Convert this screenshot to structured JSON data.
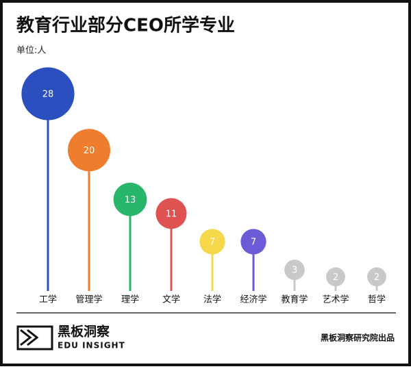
{
  "chart_data": {
    "type": "lollipop",
    "title": "教育行业部分CEO所学专业",
    "subtitle": "单位:人",
    "categories": [
      "工学",
      "管理学",
      "理学",
      "文学",
      "法学",
      "经济学",
      "教育学",
      "艺术学",
      "哲学"
    ],
    "values": [
      28,
      20,
      13,
      11,
      7,
      7,
      3,
      2,
      2
    ],
    "colors": [
      "#2c4fbf",
      "#ee7d2e",
      "#28b76a",
      "#df5252",
      "#f6d84b",
      "#6a5bd6",
      "#c9c9c9",
      "#c9c9c9",
      "#c9c9c9"
    ]
  },
  "footer": {
    "logo_name": "黑板洞察",
    "logo_sub": "EDU INSIGHT",
    "source": "黑板洞察研究院出品"
  }
}
